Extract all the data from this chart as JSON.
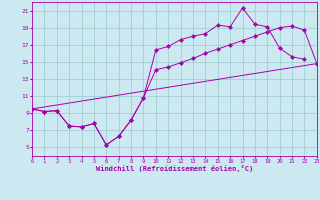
{
  "xlabel": "Windchill (Refroidissement éolien,°C)",
  "background_color": "#cce8f0",
  "line_color": "#aa00aa",
  "x_min": 0,
  "x_max": 23,
  "y_min": 4,
  "y_max": 22,
  "yticks": [
    5,
    7,
    9,
    11,
    13,
    15,
    17,
    19,
    21
  ],
  "xticks": [
    0,
    1,
    2,
    3,
    4,
    5,
    6,
    7,
    8,
    9,
    10,
    11,
    12,
    13,
    14,
    15,
    16,
    17,
    18,
    19,
    20,
    21,
    22,
    23
  ],
  "series_jagged_x": [
    0,
    1,
    2,
    3,
    4,
    5,
    6,
    7,
    8,
    9,
    10,
    11,
    12,
    13,
    14,
    15,
    16,
    17,
    18,
    19,
    20,
    21,
    22
  ],
  "series_jagged_y": [
    9.5,
    9.2,
    9.3,
    7.5,
    7.4,
    7.8,
    5.3,
    6.3,
    8.2,
    10.8,
    16.4,
    16.8,
    17.6,
    18.0,
    18.3,
    19.3,
    19.1,
    21.3,
    19.4,
    19.1,
    16.6,
    15.6,
    15.3
  ],
  "series_smooth_x": [
    0,
    1,
    2,
    3,
    4,
    5,
    6,
    7,
    8,
    9,
    10,
    11,
    12,
    13,
    14,
    15,
    16,
    17,
    18,
    19,
    20,
    21,
    22,
    23
  ],
  "series_smooth_y": [
    9.5,
    9.2,
    9.3,
    7.5,
    7.4,
    7.8,
    5.3,
    6.3,
    8.2,
    10.8,
    14.1,
    14.4,
    14.9,
    15.4,
    16.0,
    16.5,
    17.0,
    17.5,
    18.0,
    18.5,
    19.0,
    19.2,
    18.7,
    14.8
  ],
  "series_line_x": [
    0,
    23
  ],
  "series_line_y": [
    9.5,
    14.8
  ],
  "grid_color": "#99cccc",
  "markersize": 2.5
}
